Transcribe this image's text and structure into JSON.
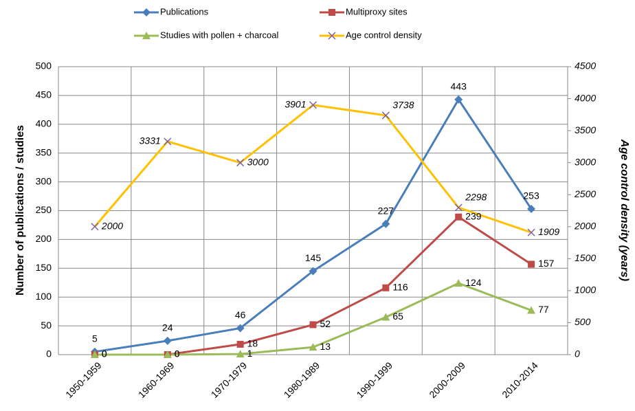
{
  "chart_data": {
    "type": "line",
    "categories": [
      "1950-1959",
      "1960-1969",
      "1970-1979",
      "1980-1989",
      "1990-1999",
      "2000-2009",
      "2010-2014"
    ],
    "y_label": "Number of publications / studies",
    "y2_label": "Age control density (years)",
    "ylim": [
      0,
      500
    ],
    "yticks": [
      0,
      50,
      100,
      150,
      200,
      250,
      300,
      350,
      400,
      450,
      500
    ],
    "y2lim": [
      0,
      4500
    ],
    "y2ticks": [
      0,
      500,
      1000,
      1500,
      2000,
      2500,
      3000,
      3500,
      4000,
      4500
    ],
    "grid": true,
    "series": [
      {
        "name": "Publications",
        "color": "#4a7ebb",
        "marker": "diamond",
        "values": [
          5,
          24,
          46,
          145,
          227,
          443,
          253
        ]
      },
      {
        "name": "Multiproxy sites",
        "color": "#be4b48",
        "marker": "square",
        "values": [
          0,
          0,
          18,
          52,
          116,
          239,
          157
        ]
      },
      {
        "name": "Studies with pollen + charcoal",
        "color": "#9bbb59",
        "marker": "triangle",
        "values": [
          0,
          0,
          1,
          13,
          65,
          124,
          77
        ]
      },
      {
        "name": "Age control density",
        "color": "#ffc000",
        "marker": "x",
        "marker_color": "#7d60a0",
        "axis": "y2",
        "values": [
          2000,
          3331,
          3000,
          3901,
          3738,
          2298,
          1909
        ]
      }
    ]
  }
}
